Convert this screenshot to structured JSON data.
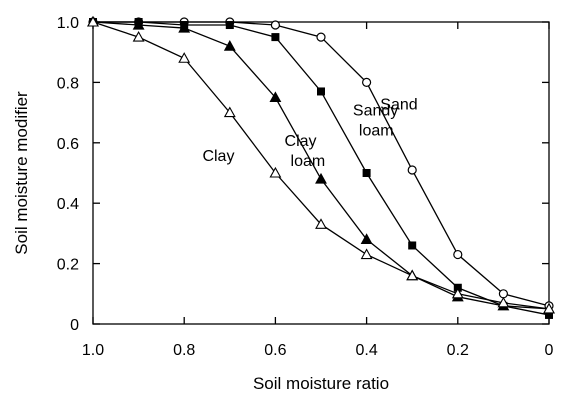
{
  "chart_data": {
    "type": "line",
    "xlabel": "Soil moisture ratio",
    "ylabel": "Soil moisture modifier",
    "xlim": [
      1.0,
      0.0
    ],
    "ylim": [
      0.0,
      1.0
    ],
    "x_reversed": true,
    "grid": false,
    "legend": "inline labels beside curves",
    "x_ticks": [
      "1.0",
      "0.8",
      "0.6",
      "0.4",
      "0.2",
      "0"
    ],
    "y_ticks": [
      "0",
      "0.2",
      "0.4",
      "0.6",
      "0.8",
      "1.0"
    ],
    "series": [
      {
        "name": "Sand",
        "label_lines": [
          "Sand"
        ],
        "marker": "circle-open",
        "x": [
          1.0,
          0.9,
          0.8,
          0.7,
          0.6,
          0.5,
          0.4,
          0.3,
          0.2,
          0.1,
          0.0
        ],
        "y": [
          1.0,
          1.0,
          1.0,
          1.0,
          0.99,
          0.95,
          0.8,
          0.51,
          0.23,
          0.1,
          0.06
        ]
      },
      {
        "name": "Sandy loam",
        "label_lines": [
          "Sandy",
          "loam"
        ],
        "marker": "square-filled",
        "x": [
          1.0,
          0.9,
          0.8,
          0.7,
          0.6,
          0.5,
          0.4,
          0.3,
          0.2,
          0.1,
          0.0
        ],
        "y": [
          1.0,
          1.0,
          0.99,
          0.99,
          0.95,
          0.77,
          0.5,
          0.26,
          0.12,
          0.06,
          0.03
        ]
      },
      {
        "name": "Clay loam",
        "label_lines": [
          "Clay",
          "loam"
        ],
        "marker": "triangle-filled",
        "x": [
          1.0,
          0.9,
          0.8,
          0.7,
          0.6,
          0.5,
          0.4,
          0.3,
          0.2,
          0.1,
          0.0
        ],
        "y": [
          1.0,
          0.99,
          0.98,
          0.92,
          0.75,
          0.48,
          0.28,
          0.16,
          0.09,
          0.06,
          0.05
        ]
      },
      {
        "name": "Clay",
        "label_lines": [
          "Clay"
        ],
        "marker": "triangle-open",
        "x": [
          1.0,
          0.9,
          0.8,
          0.7,
          0.6,
          0.5,
          0.4,
          0.3,
          0.2,
          0.1,
          0.0
        ],
        "y": [
          1.0,
          0.95,
          0.88,
          0.7,
          0.5,
          0.33,
          0.23,
          0.16,
          0.1,
          0.07,
          0.05
        ]
      }
    ]
  }
}
